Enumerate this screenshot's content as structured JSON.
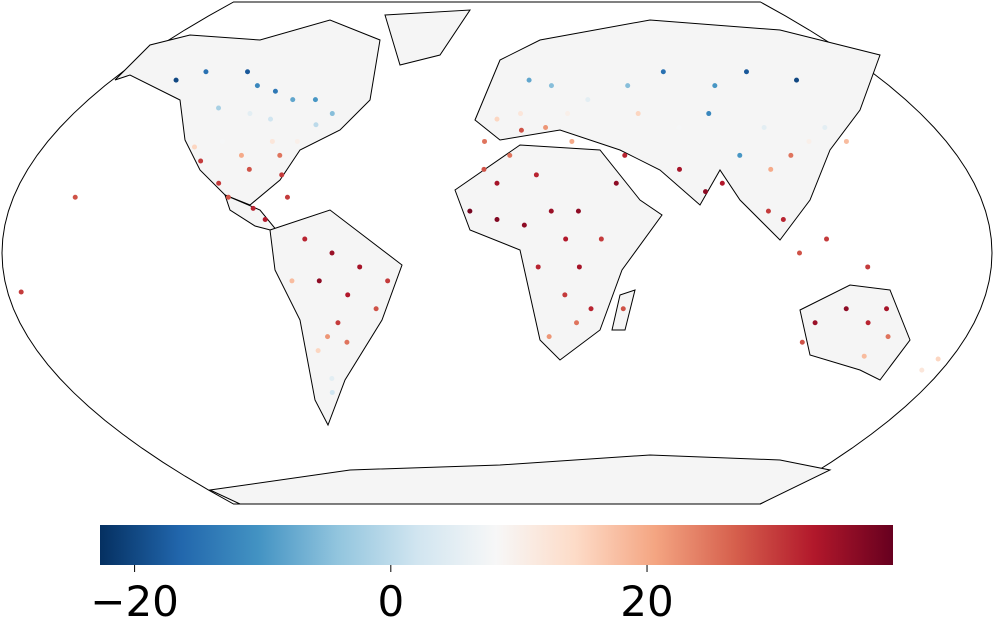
{
  "chart_data": {
    "type": "scatter",
    "x": [
      -150,
      -140,
      -120,
      -110,
      -100,
      -90,
      -80,
      -70,
      -120,
      -105,
      -95,
      -75,
      -120,
      -110,
      -100,
      -90,
      -85,
      -80,
      -95,
      -115,
      -82,
      -105,
      -100,
      -90,
      -85,
      -78,
      -70,
      -60,
      -50,
      -40,
      -65,
      -55,
      -45,
      -60,
      -65,
      -70,
      -68,
      -70,
      -75,
      -58,
      -5,
      0,
      10,
      20,
      25,
      15,
      30,
      40,
      10,
      30,
      60,
      80,
      100,
      120,
      140,
      90,
      110,
      75,
      60,
      95,
      105,
      115,
      125,
      135,
      50,
      45,
      70,
      78,
      85,
      100,
      105,
      110,
      120,
      135,
      140,
      -10,
      0,
      10,
      20,
      30,
      0,
      15,
      25,
      15,
      30,
      38,
      25,
      30,
      20,
      35,
      47,
      5,
      -5,
      120,
      130,
      140,
      145,
      150,
      145,
      118,
      172,
      175,
      -157,
      -175
    ],
    "y": [
      62,
      65,
      65,
      60,
      58,
      55,
      55,
      50,
      52,
      50,
      48,
      46,
      38,
      40,
      35,
      40,
      35,
      40,
      30,
      33,
      28,
      25,
      20,
      16,
      12,
      20,
      5,
      0,
      -5,
      -10,
      -10,
      -15,
      -20,
      -25,
      -30,
      -35,
      -45,
      -50,
      -10,
      -32,
      40,
      48,
      50,
      45,
      60,
      62,
      50,
      55,
      44,
      40,
      60,
      65,
      60,
      65,
      62,
      50,
      45,
      45,
      50,
      35,
      30,
      35,
      40,
      45,
      35,
      25,
      30,
      22,
      25,
      15,
      12,
      0,
      5,
      -5,
      40,
      15,
      12,
      10,
      15,
      15,
      25,
      28,
      5,
      -5,
      -5,
      5,
      -15,
      -25,
      -30,
      -20,
      -20,
      35,
      30,
      -25,
      -20,
      -25,
      -20,
      -30,
      -37,
      -32,
      -42,
      -38,
      20,
      -14
    ],
    "values": [
      -20,
      -15,
      -18,
      -12,
      -14,
      -8,
      -10,
      -5,
      -2,
      5,
      2,
      0,
      15,
      8,
      20,
      12,
      25,
      10,
      28,
      30,
      30,
      30,
      28,
      32,
      33,
      30,
      32,
      35,
      34,
      30,
      36,
      33,
      28,
      30,
      22,
      15,
      5,
      2,
      18,
      25,
      25,
      15,
      12,
      22,
      -5,
      -8,
      10,
      5,
      28,
      20,
      -5,
      -15,
      -10,
      -18,
      -20,
      -12,
      5,
      8,
      15,
      -10,
      20,
      25,
      10,
      5,
      32,
      36,
      34,
      36,
      33,
      30,
      32,
      28,
      30,
      30,
      18,
      38,
      37,
      36,
      35,
      36,
      34,
      32,
      33,
      32,
      34,
      30,
      30,
      25,
      22,
      32,
      28,
      25,
      28,
      35,
      36,
      32,
      34,
      25,
      18,
      28,
      12,
      15,
      28,
      30
    ],
    "colormap": [
      "#053061",
      "#2166ac",
      "#4393c3",
      "#92c5de",
      "#d1e5f0",
      "#f7f7f7",
      "#fddbc7",
      "#f4a582",
      "#d6604d",
      "#b2182b",
      "#67001f"
    ],
    "clim": [
      -22.7,
      39.2
    ],
    "cticks": [
      {
        "value": -20,
        "label": "−20"
      },
      0,
      20
    ]
  }
}
